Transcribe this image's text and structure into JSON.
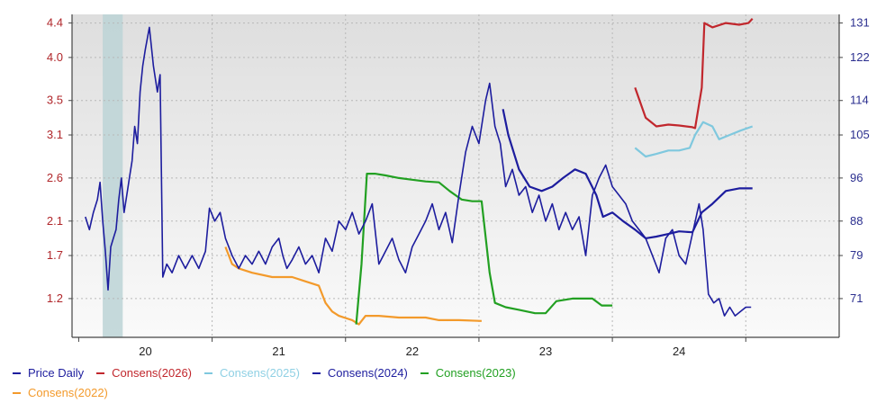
{
  "chart_data": {
    "type": "line",
    "title": "",
    "xlabel": "",
    "ylabel": "",
    "y_left_ticks": [
      "4.4",
      "4.0",
      "3.5",
      "3.1",
      "2.6",
      "2.1",
      "1.7",
      "1.2"
    ],
    "y_left_range": [
      0.75,
      4.5
    ],
    "y_right_ticks": [
      "131",
      "122",
      "114",
      "105",
      "96",
      "88",
      "79",
      "71"
    ],
    "x_ticks": [
      "20",
      "21",
      "22",
      "23",
      "24"
    ],
    "x_range": [
      2019.45,
      2025.2
    ],
    "grid": true,
    "legend_position": "bottom",
    "shaded_period": [
      2019.68,
      2019.83
    ],
    "series": [
      {
        "name": "Price Daily",
        "color": "#1d1d9e",
        "points": [
          [
            2019.55,
            2.15
          ],
          [
            2019.58,
            2.0
          ],
          [
            2019.61,
            2.2
          ],
          [
            2019.64,
            2.35
          ],
          [
            2019.66,
            2.55
          ],
          [
            2019.68,
            2.1
          ],
          [
            2019.7,
            1.75
          ],
          [
            2019.72,
            1.3
          ],
          [
            2019.74,
            1.8
          ],
          [
            2019.76,
            1.9
          ],
          [
            2019.78,
            2.0
          ],
          [
            2019.8,
            2.35
          ],
          [
            2019.82,
            2.6
          ],
          [
            2019.84,
            2.2
          ],
          [
            2019.86,
            2.4
          ],
          [
            2019.88,
            2.6
          ],
          [
            2019.9,
            2.8
          ],
          [
            2019.92,
            3.2
          ],
          [
            2019.94,
            3.0
          ],
          [
            2019.96,
            3.6
          ],
          [
            2019.98,
            3.9
          ],
          [
            2020.0,
            4.1
          ],
          [
            2020.03,
            4.35
          ],
          [
            2020.06,
            3.9
          ],
          [
            2020.09,
            3.6
          ],
          [
            2020.11,
            3.8
          ],
          [
            2020.13,
            1.45
          ],
          [
            2020.16,
            1.6
          ],
          [
            2020.2,
            1.5
          ],
          [
            2020.25,
            1.7
          ],
          [
            2020.3,
            1.55
          ],
          [
            2020.35,
            1.7
          ],
          [
            2020.4,
            1.55
          ],
          [
            2020.45,
            1.75
          ],
          [
            2020.48,
            2.25
          ],
          [
            2020.52,
            2.1
          ],
          [
            2020.56,
            2.2
          ],
          [
            2020.6,
            1.9
          ],
          [
            2020.65,
            1.7
          ],
          [
            2020.7,
            1.55
          ],
          [
            2020.75,
            1.7
          ],
          [
            2020.8,
            1.6
          ],
          [
            2020.85,
            1.75
          ],
          [
            2020.9,
            1.6
          ],
          [
            2020.95,
            1.8
          ],
          [
            2021.0,
            1.9
          ],
          [
            2021.03,
            1.7
          ],
          [
            2021.06,
            1.55
          ],
          [
            2021.1,
            1.65
          ],
          [
            2021.15,
            1.8
          ],
          [
            2021.2,
            1.6
          ],
          [
            2021.25,
            1.7
          ],
          [
            2021.3,
            1.5
          ],
          [
            2021.35,
            1.9
          ],
          [
            2021.4,
            1.75
          ],
          [
            2021.45,
            2.1
          ],
          [
            2021.5,
            2.0
          ],
          [
            2021.55,
            2.2
          ],
          [
            2021.6,
            1.95
          ],
          [
            2021.65,
            2.1
          ],
          [
            2021.7,
            2.3
          ],
          [
            2021.75,
            1.6
          ],
          [
            2021.8,
            1.75
          ],
          [
            2021.85,
            1.9
          ],
          [
            2021.9,
            1.65
          ],
          [
            2021.95,
            1.5
          ],
          [
            2022.0,
            1.8
          ],
          [
            2022.05,
            1.95
          ],
          [
            2022.1,
            2.1
          ],
          [
            2022.15,
            2.3
          ],
          [
            2022.2,
            2.0
          ],
          [
            2022.25,
            2.2
          ],
          [
            2022.3,
            1.85
          ],
          [
            2022.35,
            2.4
          ],
          [
            2022.4,
            2.9
          ],
          [
            2022.45,
            3.2
          ],
          [
            2022.5,
            3.0
          ],
          [
            2022.55,
            3.5
          ],
          [
            2022.58,
            3.7
          ],
          [
            2022.62,
            3.2
          ],
          [
            2022.66,
            3.0
          ],
          [
            2022.7,
            2.5
          ],
          [
            2022.75,
            2.7
          ],
          [
            2022.8,
            2.4
          ],
          [
            2022.85,
            2.5
          ],
          [
            2022.9,
            2.2
          ],
          [
            2022.95,
            2.4
          ],
          [
            2023.0,
            2.1
          ],
          [
            2023.05,
            2.3
          ],
          [
            2023.1,
            2.0
          ],
          [
            2023.15,
            2.2
          ],
          [
            2023.2,
            2.0
          ],
          [
            2023.25,
            2.15
          ],
          [
            2023.3,
            1.7
          ],
          [
            2023.35,
            2.4
          ],
          [
            2023.4,
            2.6
          ],
          [
            2023.45,
            2.75
          ],
          [
            2023.5,
            2.5
          ],
          [
            2023.55,
            2.4
          ],
          [
            2023.6,
            2.3
          ],
          [
            2023.65,
            2.1
          ],
          [
            2023.7,
            2.0
          ],
          [
            2023.75,
            1.9
          ],
          [
            2023.8,
            1.7
          ],
          [
            2023.85,
            1.5
          ],
          [
            2023.9,
            1.9
          ],
          [
            2023.95,
            2.0
          ],
          [
            2024.0,
            1.7
          ],
          [
            2024.05,
            1.6
          ],
          [
            2024.1,
            1.95
          ],
          [
            2024.15,
            2.3
          ],
          [
            2024.18,
            2.0
          ],
          [
            2024.22,
            1.25
          ],
          [
            2024.26,
            1.15
          ],
          [
            2024.3,
            1.2
          ],
          [
            2024.34,
            1.0
          ],
          [
            2024.38,
            1.1
          ],
          [
            2024.42,
            1.0
          ],
          [
            2024.46,
            1.05
          ],
          [
            2024.5,
            1.1
          ],
          [
            2024.54,
            1.1
          ]
        ]
      },
      {
        "name": "Consens(2026)",
        "color": "#c1272d",
        "points": [
          [
            2023.67,
            3.65
          ],
          [
            2023.75,
            3.3
          ],
          [
            2023.83,
            3.2
          ],
          [
            2023.92,
            3.22
          ],
          [
            2024.0,
            3.21
          ],
          [
            2024.1,
            3.19
          ],
          [
            2024.12,
            3.18
          ],
          [
            2024.17,
            3.65
          ],
          [
            2024.19,
            4.4
          ],
          [
            2024.25,
            4.35
          ],
          [
            2024.35,
            4.4
          ],
          [
            2024.45,
            4.38
          ],
          [
            2024.52,
            4.4
          ],
          [
            2024.55,
            4.45
          ]
        ]
      },
      {
        "name": "Consens(2025)",
        "color": "#7fc8de",
        "points": [
          [
            2023.67,
            2.95
          ],
          [
            2023.75,
            2.85
          ],
          [
            2023.83,
            2.88
          ],
          [
            2023.92,
            2.92
          ],
          [
            2024.0,
            2.92
          ],
          [
            2024.08,
            2.95
          ],
          [
            2024.12,
            3.1
          ],
          [
            2024.18,
            3.25
          ],
          [
            2024.25,
            3.2
          ],
          [
            2024.3,
            3.05
          ],
          [
            2024.38,
            3.1
          ],
          [
            2024.46,
            3.15
          ],
          [
            2024.55,
            3.2
          ]
        ]
      },
      {
        "name": "Consens(2024)",
        "color": "#1d1d9e",
        "points": [
          [
            2022.68,
            3.4
          ],
          [
            2022.72,
            3.1
          ],
          [
            2022.8,
            2.7
          ],
          [
            2022.88,
            2.5
          ],
          [
            2022.97,
            2.45
          ],
          [
            2023.05,
            2.5
          ],
          [
            2023.13,
            2.6
          ],
          [
            2023.22,
            2.7
          ],
          [
            2023.3,
            2.65
          ],
          [
            2023.38,
            2.4
          ],
          [
            2023.43,
            2.15
          ],
          [
            2023.5,
            2.2
          ],
          [
            2023.58,
            2.1
          ],
          [
            2023.67,
            2.0
          ],
          [
            2023.75,
            1.9
          ],
          [
            2023.83,
            1.92
          ],
          [
            2023.92,
            1.95
          ],
          [
            2024.0,
            1.98
          ],
          [
            2024.1,
            1.97
          ],
          [
            2024.17,
            2.2
          ],
          [
            2024.25,
            2.3
          ],
          [
            2024.35,
            2.45
          ],
          [
            2024.45,
            2.48
          ],
          [
            2024.55,
            2.48
          ]
        ]
      },
      {
        "name": "Consens(2023)",
        "color": "#22a022",
        "points": [
          [
            2021.58,
            0.9
          ],
          [
            2021.62,
            1.6
          ],
          [
            2021.66,
            2.65
          ],
          [
            2021.72,
            2.65
          ],
          [
            2021.8,
            2.63
          ],
          [
            2021.9,
            2.6
          ],
          [
            2022.0,
            2.58
          ],
          [
            2022.1,
            2.56
          ],
          [
            2022.2,
            2.55
          ],
          [
            2022.28,
            2.45
          ],
          [
            2022.37,
            2.35
          ],
          [
            2022.45,
            2.33
          ],
          [
            2022.52,
            2.33
          ],
          [
            2022.58,
            1.5
          ],
          [
            2022.62,
            1.15
          ],
          [
            2022.7,
            1.1
          ],
          [
            2022.8,
            1.07
          ],
          [
            2022.92,
            1.03
          ],
          [
            2023.0,
            1.03
          ],
          [
            2023.08,
            1.17
          ],
          [
            2023.2,
            1.2
          ],
          [
            2023.35,
            1.2
          ],
          [
            2023.42,
            1.12
          ],
          [
            2023.5,
            1.12
          ]
        ]
      },
      {
        "name": "Consens(2022)",
        "color": "#f39a2b",
        "points": [
          [
            2020.6,
            1.8
          ],
          [
            2020.65,
            1.6
          ],
          [
            2020.7,
            1.55
          ],
          [
            2020.8,
            1.5
          ],
          [
            2020.95,
            1.45
          ],
          [
            2021.1,
            1.45
          ],
          [
            2021.2,
            1.4
          ],
          [
            2021.3,
            1.35
          ],
          [
            2021.35,
            1.15
          ],
          [
            2021.4,
            1.05
          ],
          [
            2021.45,
            1.0
          ],
          [
            2021.55,
            0.95
          ],
          [
            2021.6,
            0.9
          ],
          [
            2021.65,
            1.0
          ],
          [
            2021.75,
            1.0
          ],
          [
            2021.9,
            0.98
          ],
          [
            2022.1,
            0.98
          ],
          [
            2022.2,
            0.95
          ],
          [
            2022.35,
            0.95
          ],
          [
            2022.52,
            0.94
          ]
        ]
      }
    ]
  },
  "legend": [
    {
      "label": "Price Daily",
      "color": "#1d1d9e"
    },
    {
      "label": "Consens(2026)",
      "color": "#c1272d"
    },
    {
      "label": "Consens(2025)",
      "color": "#7fc8de"
    },
    {
      "label": "Consens(2024)",
      "color": "#1d1d9e"
    },
    {
      "label": "Consens(2023)",
      "color": "#22a022"
    },
    {
      "label": "Consens(2022)",
      "color": "#f39a2b"
    }
  ]
}
